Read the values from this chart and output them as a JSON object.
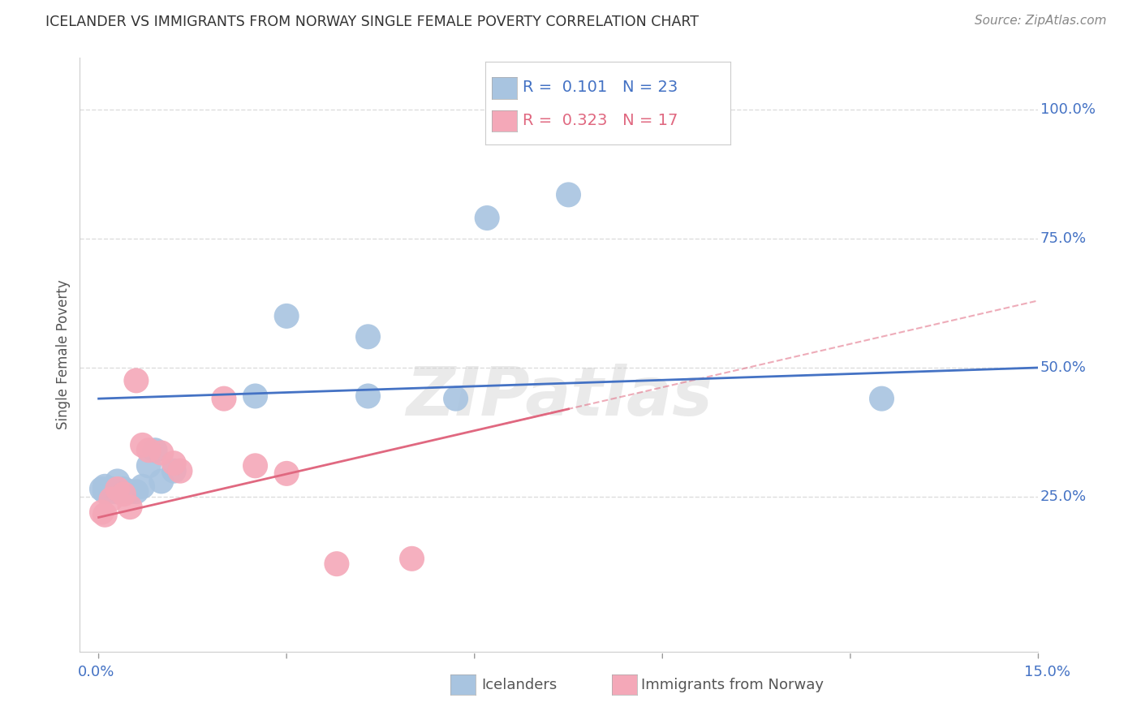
{
  "title": "ICELANDER VS IMMIGRANTS FROM NORWAY SINGLE FEMALE POVERTY CORRELATION CHART",
  "source": "Source: ZipAtlas.com",
  "ylabel": "Single Female Poverty",
  "ytick_labels": [
    "25.0%",
    "50.0%",
    "75.0%",
    "100.0%"
  ],
  "ytick_values": [
    0.25,
    0.5,
    0.75,
    1.0
  ],
  "xlim": [
    0.0,
    0.15
  ],
  "ylim": [
    -0.05,
    1.1
  ],
  "legend_icelander_R": "0.101",
  "legend_icelander_N": "23",
  "legend_norway_R": "0.323",
  "legend_norway_N": "17",
  "icelander_color": "#a8c4e0",
  "norway_color": "#f4a8b8",
  "icelander_line_color": "#4472c4",
  "norway_line_color": "#e06880",
  "watermark": "ZIPatlas",
  "icelanders_x": [
    0.0005,
    0.001,
    0.001,
    0.002,
    0.002,
    0.003,
    0.003,
    0.004,
    0.005,
    0.006,
    0.007,
    0.008,
    0.009,
    0.01,
    0.012,
    0.025,
    0.03,
    0.043,
    0.043,
    0.057,
    0.062,
    0.075,
    0.125
  ],
  "icelanders_y": [
    0.265,
    0.26,
    0.27,
    0.265,
    0.26,
    0.28,
    0.26,
    0.265,
    0.26,
    0.26,
    0.27,
    0.31,
    0.34,
    0.28,
    0.3,
    0.445,
    0.6,
    0.56,
    0.445,
    0.44,
    0.79,
    0.835,
    0.44
  ],
  "norway_x": [
    0.0005,
    0.001,
    0.002,
    0.003,
    0.004,
    0.005,
    0.006,
    0.007,
    0.008,
    0.01,
    0.012,
    0.013,
    0.02,
    0.025,
    0.03,
    0.038,
    0.05
  ],
  "norway_y": [
    0.22,
    0.215,
    0.245,
    0.265,
    0.255,
    0.23,
    0.475,
    0.35,
    0.34,
    0.335,
    0.315,
    0.3,
    0.44,
    0.31,
    0.295,
    0.12,
    0.13
  ],
  "icelander_trendline": [
    0.44,
    0.5
  ],
  "norway_trendline": [
    0.21,
    0.63
  ],
  "background_color": "#ffffff",
  "grid_color": "#dddddd",
  "title_color": "#333333",
  "axis_color": "#4472c4",
  "source_color": "#888888"
}
